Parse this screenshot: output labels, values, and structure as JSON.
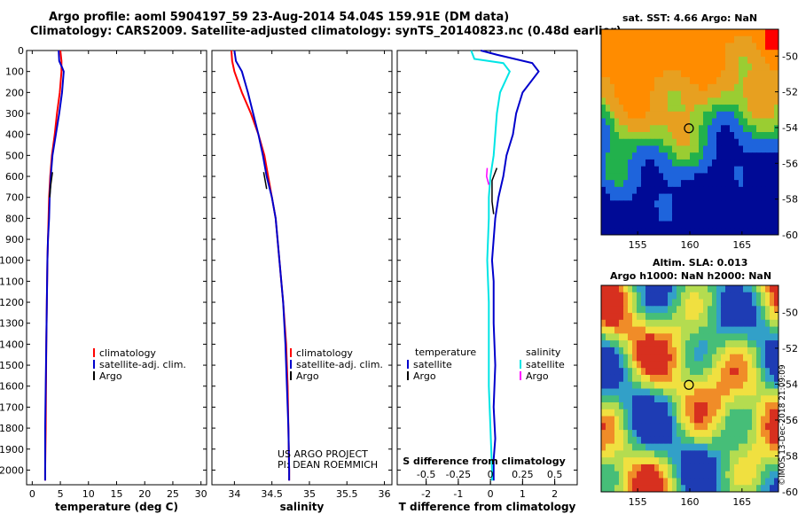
{
  "header": {
    "title_line1": "Argo profile: aoml 5904197_59 23-Aug-2014 54.04S 159.91E (DM data)",
    "title_line2": "Climatology: CARS2009. Satellite-adjusted climatology: synTS_20140823.nc (0.48d earlier)"
  },
  "credit": [
    "US ARGO PROJECT",
    "PI: DEAN ROEMMICH"
  ],
  "stamp": "©IMOS 13-Dec-2018 21:09:09",
  "colors": {
    "climatology": "#ff0000",
    "satellite": "#0000cc",
    "argo": "#000000",
    "salinity_satellite": "#00e5e5",
    "salinity_argo": "#ff00ff"
  },
  "chart_data": [
    {
      "id": "temperature",
      "type": "line",
      "xlabel": "temperature (deg C)",
      "ylabel": "",
      "xlim": [
        -1,
        31
      ],
      "ylim": [
        2070,
        0
      ],
      "xticks": [
        0,
        5,
        10,
        15,
        20,
        25,
        30
      ],
      "yticks": [
        0,
        100,
        200,
        300,
        400,
        500,
        600,
        700,
        800,
        900,
        1000,
        1100,
        1200,
        1300,
        1400,
        1500,
        1600,
        1700,
        1800,
        1900,
        2000
      ],
      "legend": [
        "climatology",
        "satellite-adj. clim.",
        "Argo"
      ],
      "series": [
        {
          "name": "climatology",
          "color": "#ff0000",
          "x": [
            5.0,
            5.2,
            5.2,
            4.9,
            4.4,
            4.0,
            3.5,
            3.2,
            3.0,
            2.9,
            2.8,
            2.7,
            2.6,
            2.5,
            2.45,
            2.4,
            2.35,
            2.3,
            2.3
          ],
          "y": [
            0,
            50,
            100,
            200,
            300,
            400,
            500,
            600,
            700,
            800,
            900,
            1000,
            1200,
            1400,
            1600,
            1800,
            1900,
            2000,
            2050
          ]
        },
        {
          "name": "satellite-adj. clim.",
          "color": "#0000cc",
          "x": [
            4.7,
            4.8,
            5.3,
            5.6,
            5.3,
            4.8,
            4.2,
            3.6,
            3.3,
            3.1,
            3.0,
            2.8,
            2.7,
            2.6,
            2.5,
            2.4,
            2.3,
            2.3,
            2.3
          ],
          "y": [
            0,
            50,
            80,
            100,
            200,
            300,
            400,
            500,
            600,
            700,
            800,
            900,
            1000,
            1200,
            1400,
            1600,
            1800,
            2000,
            2050
          ]
        },
        {
          "name": "Argo",
          "color": "#000000",
          "x": [
            3.6,
            3.3,
            3.1
          ],
          "y": [
            580,
            640,
            700
          ]
        }
      ]
    },
    {
      "id": "salinity",
      "type": "line",
      "xlabel": "salinity",
      "xlim": [
        33.7,
        36.1
      ],
      "ylim": [
        2070,
        0
      ],
      "xticks": [
        34,
        34.5,
        35,
        35.5,
        36
      ],
      "xticklabels": [
        "34",
        "34.5",
        "35",
        "35.5",
        "36"
      ],
      "legend": [
        "climatology",
        "satellite-adj. clim.",
        "Argo"
      ],
      "series": [
        {
          "name": "climatology",
          "color": "#ff0000",
          "x": [
            33.96,
            33.97,
            34.0,
            34.1,
            34.22,
            34.32,
            34.4,
            34.45,
            34.5,
            34.55,
            34.6,
            34.65,
            34.69,
            34.71,
            34.72,
            34.73,
            34.73
          ],
          "y": [
            0,
            50,
            100,
            200,
            300,
            400,
            500,
            600,
            700,
            800,
            1000,
            1200,
            1400,
            1600,
            1800,
            2000,
            2050
          ]
        },
        {
          "name": "satellite-adj. clim.",
          "color": "#0000cc",
          "x": [
            34.0,
            34.02,
            34.1,
            34.18,
            34.25,
            34.32,
            34.38,
            34.43,
            34.5,
            34.55,
            34.6,
            34.65,
            34.68,
            34.7,
            34.72,
            34.73,
            34.73
          ],
          "y": [
            0,
            50,
            100,
            200,
            300,
            400,
            500,
            600,
            700,
            800,
            1000,
            1200,
            1400,
            1600,
            1800,
            2000,
            2050
          ]
        },
        {
          "name": "Argo",
          "color": "#000000",
          "x": [
            34.39,
            34.41,
            34.43
          ],
          "y": [
            580,
            620,
            660
          ]
        }
      ]
    },
    {
      "id": "difference",
      "type": "line",
      "xlabel": "T difference from climatology",
      "xlabel2": "S difference from climatology",
      "xlim": [
        -2.9,
        2.7
      ],
      "ylim": [
        2070,
        0
      ],
      "xticks": [
        -2,
        -1,
        0,
        1,
        2
      ],
      "xticklabels": [
        "-2",
        "-1",
        "0",
        "1",
        "2"
      ],
      "x2ticks": [
        -0.5,
        -0.25,
        0,
        0.25,
        0.5
      ],
      "x2ticklabels": [
        "-0.5",
        "-0.25",
        "0",
        "0.25",
        "0.5"
      ],
      "x2scale": 4,
      "legend_left_title": "temperature",
      "legend_right_title": "salinity",
      "legend": [
        "satellite",
        "Argo",
        "satellite",
        "Argo"
      ],
      "series": [
        {
          "name": "T satellite",
          "color": "#0000cc",
          "x": [
            -0.3,
            0.2,
            1.3,
            1.5,
            1.0,
            0.8,
            0.7,
            0.5,
            0.4,
            0.25,
            0.15,
            0.1,
            0.05,
            0.1,
            0.1,
            0.15,
            0.1,
            0.15,
            0.1,
            0.1,
            0.1
          ],
          "y": [
            0,
            20,
            60,
            100,
            200,
            300,
            400,
            500,
            600,
            700,
            800,
            900,
            1000,
            1100,
            1300,
            1500,
            1700,
            1850,
            1950,
            2000,
            2050
          ]
        },
        {
          "name": "T Argo",
          "color": "#000000",
          "x": [
            0.2,
            0.05,
            0.05,
            0.1
          ],
          "y": [
            560,
            620,
            720,
            780
          ]
        },
        {
          "name": "S satellite",
          "color": "#00e5e5",
          "x": [
            -0.6,
            -0.5,
            0.4,
            0.6,
            0.3,
            0.2,
            0.1,
            0.0,
            -0.05,
            -0.05,
            -0.1,
            -0.05,
            -0.05,
            -0.05,
            0.0,
            0.05,
            0.05
          ],
          "y": [
            0,
            40,
            60,
            100,
            200,
            300,
            500,
            600,
            700,
            800,
            1000,
            1200,
            1400,
            1600,
            1800,
            2000,
            2050
          ]
        },
        {
          "name": "S Argo",
          "color": "#ff00ff",
          "x": [
            -0.1,
            -0.12,
            -0.05
          ],
          "y": [
            560,
            600,
            640
          ]
        }
      ]
    },
    {
      "id": "sst_map",
      "type": "heatmap",
      "title": "sat. SST: 4.66 Argo: NaN",
      "xlim": [
        151.5,
        168.5
      ],
      "ylim": [
        -60,
        -48.5
      ],
      "xticks": [
        155,
        160,
        165
      ],
      "yticks": [
        -50,
        -52,
        -54,
        -56,
        -58,
        -60
      ],
      "float_position": {
        "lon": 159.91,
        "lat": -54.04
      }
    },
    {
      "id": "sla_map",
      "type": "heatmap",
      "title": "Altim. SLA: 0.013",
      "subtitle": "Argo h1000: NaN h2000: NaN",
      "xlim": [
        151.5,
        168.5
      ],
      "ylim": [
        -60,
        -48.5
      ],
      "xticks": [
        155,
        160,
        165
      ],
      "yticks": [
        -50,
        -52,
        -54,
        -56,
        -58,
        -60
      ],
      "float_position": {
        "lon": 159.91,
        "lat": -54.04
      }
    }
  ]
}
